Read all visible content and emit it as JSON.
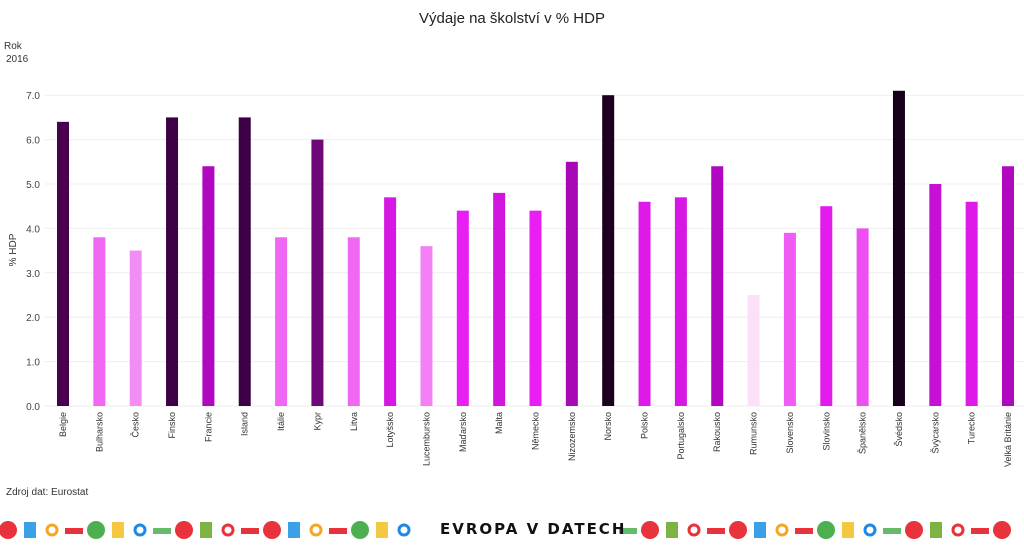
{
  "chart_data": {
    "type": "bar",
    "title": "Výdaje na školství v % HDP",
    "filter_label": "Rok",
    "filter_value": "2016",
    "ylabel": "% HDP",
    "xlabel": "",
    "ylim": [
      0,
      7.3
    ],
    "yticks": [
      "0.0",
      "1.0",
      "2.0",
      "3.0",
      "4.0",
      "5.0",
      "6.0",
      "7.0"
    ],
    "grid": true,
    "categories": [
      "Belgie",
      "Bulharsko",
      "Česko",
      "Finsko",
      "Francie",
      "Island",
      "Itálie",
      "Kypr",
      "Litva",
      "Lotyšsko",
      "Lucembursko",
      "Maďarsko",
      "Malta",
      "Německo",
      "Nizozemsko",
      "Norsko",
      "Polsko",
      "Portugalsko",
      "Rakousko",
      "Rumunsko",
      "Slovensko",
      "Slovinsko",
      "Španělsko",
      "Švédsko",
      "Švýcarsko",
      "Turecko",
      "Velká Británie"
    ],
    "values": [
      6.4,
      3.8,
      3.5,
      6.5,
      5.4,
      6.5,
      3.8,
      6.0,
      3.8,
      4.7,
      3.6,
      4.4,
      4.8,
      4.4,
      5.5,
      7.0,
      4.6,
      4.7,
      5.4,
      2.5,
      3.9,
      4.5,
      4.0,
      7.1,
      5.0,
      4.6,
      5.4
    ],
    "color_scale": [
      [
        2.5,
        "#fbe0f8"
      ],
      [
        3.5,
        "#f48cf5"
      ],
      [
        4.4,
        "#e81ef2"
      ],
      [
        5.4,
        "#b008c0"
      ],
      [
        6.0,
        "#6e0878"
      ],
      [
        6.5,
        "#3e0045"
      ],
      [
        7.1,
        "#17001a"
      ]
    ]
  },
  "footer": {
    "source": "Zdroj dat: Eurostat",
    "logo": "EVROPA V DATECH"
  }
}
